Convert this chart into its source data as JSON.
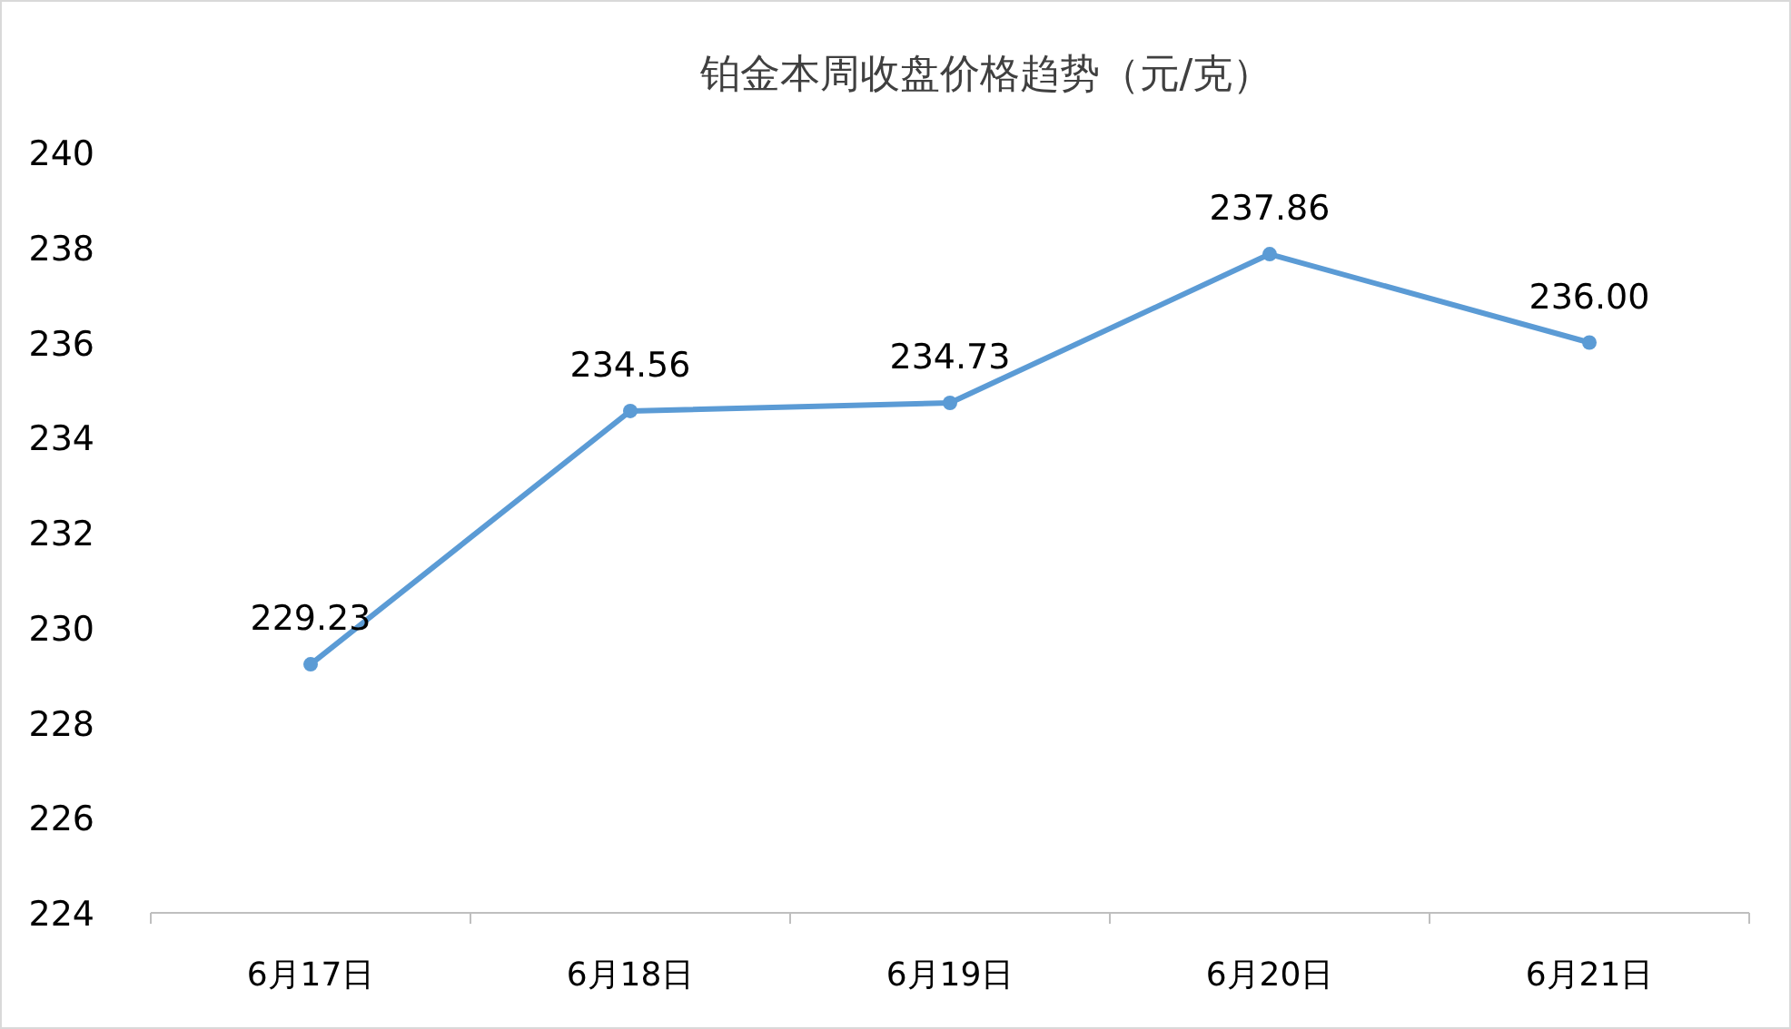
{
  "chart_data": {
    "type": "line",
    "title": "铂金本周收盘价格趋势（元/克）",
    "categories": [
      "6月17日",
      "6月18日",
      "6月19日",
      "6月20日",
      "6月21日"
    ],
    "series": [
      {
        "color": "#5b9bd5",
        "values": [
          229.23,
          234.56,
          234.73,
          237.86,
          236.0
        ],
        "value_labels": [
          "229.23",
          "234.56",
          "234.73",
          "237.86",
          "236.00"
        ]
      }
    ],
    "ylim": [
      224,
      240
    ],
    "yticks": [
      224,
      226,
      228,
      230,
      232,
      234,
      236,
      238,
      240
    ],
    "marker": "circle",
    "grid": false
  }
}
